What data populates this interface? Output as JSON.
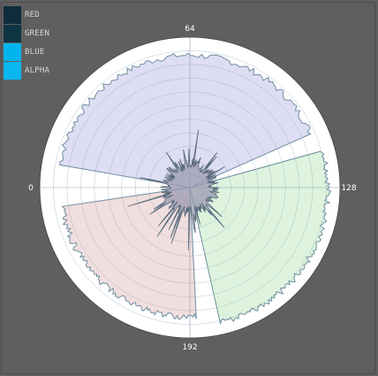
{
  "chart_data": {
    "type": "radial-histogram",
    "angle_labels": [
      "64",
      "128",
      "192",
      "0"
    ],
    "angle_range": [
      0,
      256
    ],
    "legend_position": "top-left",
    "series": [
      {
        "name": "RED",
        "swatch": "#0e2c3c",
        "fill": "#f0dada",
        "stroke": "#6f8fa0"
      },
      {
        "name": "GREEN",
        "swatch": "#0e3444",
        "fill": "#d9f2d9",
        "stroke": "#6f8fa0"
      },
      {
        "name": "BLUE",
        "swatch": "#00b4ee",
        "fill": "#d9d9f3",
        "stroke": "#6f8fa0"
      },
      {
        "name": "ALPHA",
        "swatch": "#0ab6f0",
        "fill": "#9a9ab0",
        "stroke": "#56687a"
      }
    ],
    "wedges": [
      {
        "series": "BLUE",
        "from": 7,
        "to": 111,
        "level": 0.88
      },
      {
        "series": "GREEN",
        "from": 117,
        "to": 183,
        "level": 0.92
      },
      {
        "series": "RED",
        "from": 190,
        "to": 250,
        "level": 0.86
      },
      {
        "series": "ALPHA",
        "from": 0,
        "to": 256,
        "level": 0.16
      }
    ],
    "grid": true,
    "grid_rings": 10
  }
}
